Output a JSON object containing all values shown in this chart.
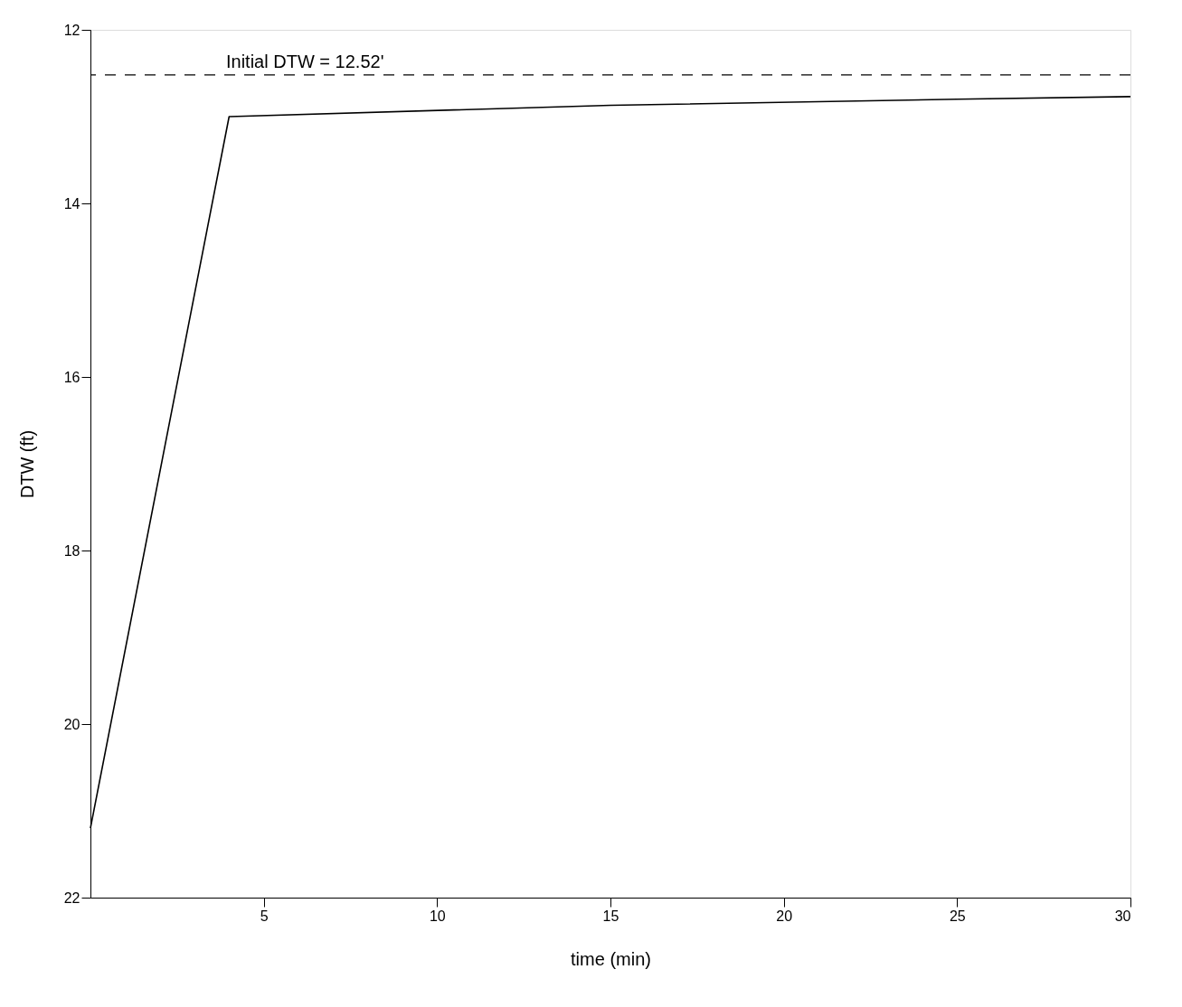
{
  "chart_data": {
    "type": "line",
    "xlabel": "time (min)",
    "ylabel": "DTW (ft)",
    "x": [
      0,
      4,
      15,
      25,
      30
    ],
    "series": [
      {
        "color": "#000000",
        "values": [
          21.2,
          13.0,
          12.87,
          12.8,
          12.77
        ]
      }
    ],
    "xlim": [
      0,
      30
    ],
    "xticks": [
      5,
      10,
      15,
      20,
      25,
      30
    ],
    "ylim": [
      22,
      12
    ],
    "yticks": [
      12,
      14,
      16,
      18,
      20,
      22
    ],
    "ref_lines": [
      {
        "axis": "y",
        "value": 12.52,
        "label": "Initial DTW = 12.52'",
        "line_style": "dashed",
        "color": "#000000"
      }
    ],
    "grid": false,
    "marker": "none",
    "line_style": "solid"
  }
}
